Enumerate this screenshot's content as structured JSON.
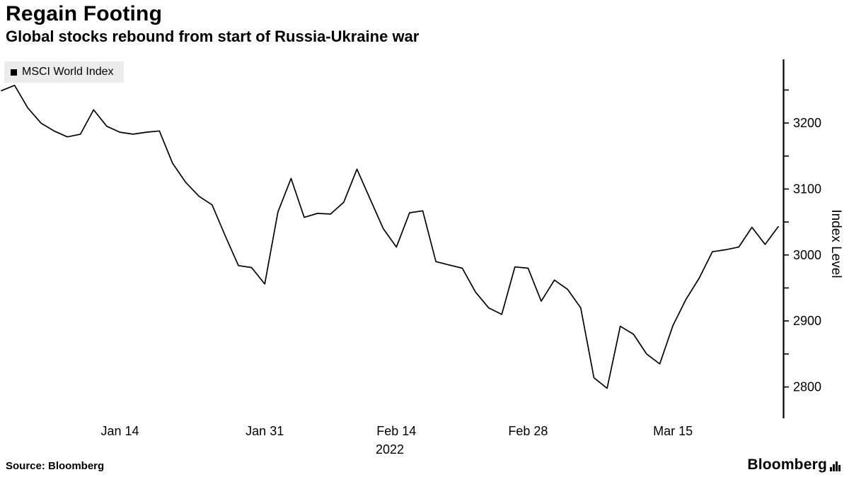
{
  "header": {
    "title": "Regain Footing",
    "subtitle": "Global stocks rebound from start of Russia-Ukraine war"
  },
  "legend": {
    "label": "MSCI World Index",
    "marker_color": "#000000"
  },
  "source": "Source: Bloomberg",
  "branding": "Bloomberg",
  "chart_data": {
    "type": "line",
    "title": "Regain Footing",
    "subtitle": "Global stocks rebound from start of Russia-Ukraine war",
    "series_name": "MSCI World Index",
    "ylabel": "Index Level",
    "year_label": "2022",
    "line_color": "#000000",
    "grid": false,
    "legend_position": "top-left",
    "y_axis_side": "right",
    "ylim": [
      2760,
      3290
    ],
    "yticks_major": [
      2800,
      2900,
      3000,
      3100,
      3200
    ],
    "yticks_minor_step": 50,
    "x_dates": [
      "Jan 3",
      "Jan 4",
      "Jan 5",
      "Jan 6",
      "Jan 7",
      "Jan 10",
      "Jan 11",
      "Jan 12",
      "Jan 13",
      "Jan 14",
      "Jan 17",
      "Jan 18",
      "Jan 19",
      "Jan 20",
      "Jan 21",
      "Jan 24",
      "Jan 25",
      "Jan 26",
      "Jan 27",
      "Jan 28",
      "Jan 31",
      "Feb 1",
      "Feb 2",
      "Feb 3",
      "Feb 4",
      "Feb 7",
      "Feb 8",
      "Feb 9",
      "Feb 10",
      "Feb 11",
      "Feb 14",
      "Feb 15",
      "Feb 16",
      "Feb 17",
      "Feb 18",
      "Feb 21",
      "Feb 22",
      "Feb 23",
      "Feb 24",
      "Feb 25",
      "Feb 28",
      "Mar 1",
      "Mar 2",
      "Mar 3",
      "Mar 4",
      "Mar 7",
      "Mar 8",
      "Mar 9",
      "Mar 10",
      "Mar 11",
      "Mar 14",
      "Mar 15",
      "Mar 16",
      "Mar 17",
      "Mar 18",
      "Mar 21",
      "Mar 22",
      "Mar 23",
      "Mar 24",
      "Mar 25"
    ],
    "values": [
      3249,
      3257,
      3223,
      3200,
      3188,
      3179,
      3183,
      3220,
      3195,
      3186,
      3183,
      3186,
      3188,
      3139,
      3110,
      3089,
      3076,
      3029,
      2984,
      2981,
      2956,
      3065,
      3116,
      3057,
      3063,
      3062,
      3080,
      3130,
      3085,
      3040,
      3012,
      3064,
      3067,
      2990,
      2985,
      2980,
      2944,
      2920,
      2910,
      2982,
      2980,
      2930,
      2962,
      2948,
      2920,
      2814,
      2798,
      2892,
      2880,
      2850,
      2835,
      2893,
      2933,
      2965,
      3005,
      3008,
      3012,
      3042,
      3016,
      3043
    ],
    "xticks": [
      {
        "label": "Jan 14",
        "index": 9
      },
      {
        "label": "Jan 31",
        "index": 20
      },
      {
        "label": "Feb 14",
        "index": 30
      },
      {
        "label": "Feb 28",
        "index": 40
      },
      {
        "label": "Mar 15",
        "index": 51
      }
    ]
  }
}
